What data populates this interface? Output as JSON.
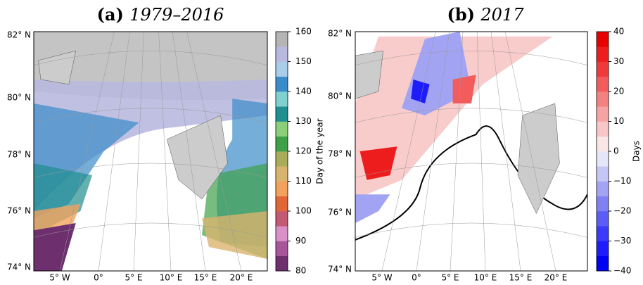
{
  "panels": [
    {
      "title_bold": "(a)",
      "title_italic": "1979–2016",
      "lat_labels": [
        "82° N",
        "80° N",
        "78° N",
        "76° N",
        "74° N"
      ],
      "lon_labels": [
        "5° W",
        "0°",
        "5° E",
        "10° E",
        "15° E",
        "20° E"
      ],
      "colorbar": {
        "label": "Day of the year",
        "lim": [
          80,
          160
        ],
        "ticks": [
          80,
          90,
          100,
          110,
          120,
          130,
          140,
          150,
          160
        ],
        "colors": [
          "#6e2f6e",
          "#a8559a",
          "#d98fc7",
          "#c25a74",
          "#e0663a",
          "#f2a25c",
          "#d9b46e",
          "#a9ad5a",
          "#3fa04a",
          "#8ccf7a",
          "#1f8f8f",
          "#7fd0cf",
          "#3a8cc8",
          "#a9cde8",
          "#b9b9e0",
          "#b5b5b5"
        ]
      }
    },
    {
      "title_bold": "(b)",
      "title_italic": "2017",
      "lat_labels": [
        "82° N",
        "80° N",
        "78° N",
        "76° N",
        "74° N"
      ],
      "lon_labels": [
        "5° W",
        "0°",
        "5° E",
        "10° E",
        "15° E",
        "20° E"
      ],
      "colorbar": {
        "label": "Days",
        "lim": [
          -40,
          40
        ],
        "ticks": [
          {
            "value": -40,
            "label": "−40"
          },
          {
            "value": -30,
            "label": "−30"
          },
          {
            "value": -20,
            "label": "−20"
          },
          {
            "value": -10,
            "label": "−10"
          },
          0,
          10,
          20,
          30,
          40
        ],
        "colors": [
          "#0000f5",
          "#1d1dfa",
          "#3a3af8",
          "#5c5cf6",
          "#8080f4",
          "#a3a3f4",
          "#c6c6f6",
          "#e6e6fa",
          "#fae6e6",
          "#f8c6c6",
          "#f6a3a3",
          "#f48080",
          "#f25c5c",
          "#f03a3a",
          "#ee1d1d",
          "#e80000"
        ]
      }
    }
  ]
}
